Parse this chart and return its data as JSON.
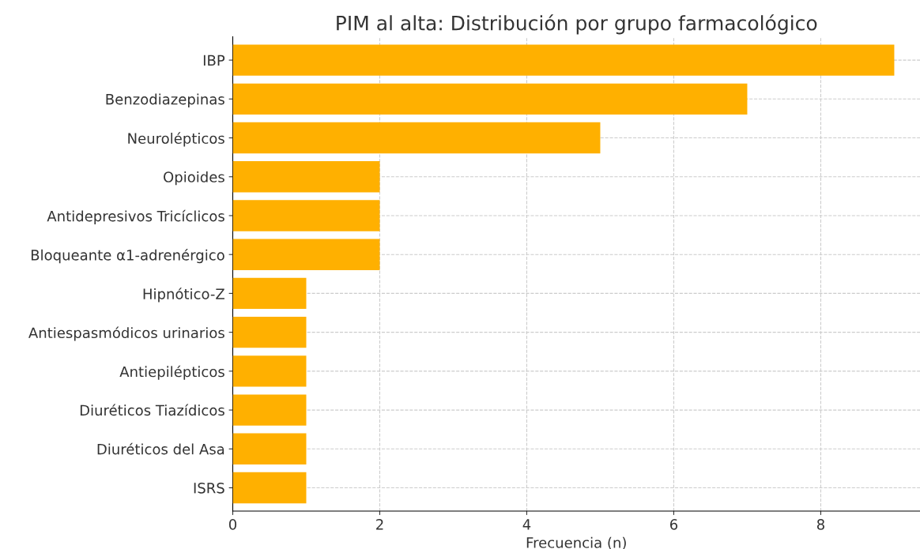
{
  "chart_data": {
    "type": "bar",
    "orientation": "horizontal",
    "title": "PIM al alta: Distribución por grupo farmacológico",
    "xlabel": "Frecuencia (n)",
    "categories": [
      "IBP",
      "Benzodiazepinas",
      "Neurolépticos",
      "Opioides",
      "Antidepresivos Tricíclicos",
      "Bloqueante α1-adrenérgico",
      "Hipnótico-Z",
      "Antiespasmódicos urinarios",
      "Antiepilépticos",
      "Diuréticos Tiazídicos",
      "Diuréticos del Asa",
      "ISRS"
    ],
    "values": [
      9,
      7,
      5,
      2,
      2,
      2,
      1,
      1,
      1,
      1,
      1,
      1
    ],
    "color": "#ffb000",
    "xlim": [
      0,
      9.35
    ],
    "xticks": [
      0,
      2,
      4,
      6,
      8
    ],
    "grid": true
  }
}
